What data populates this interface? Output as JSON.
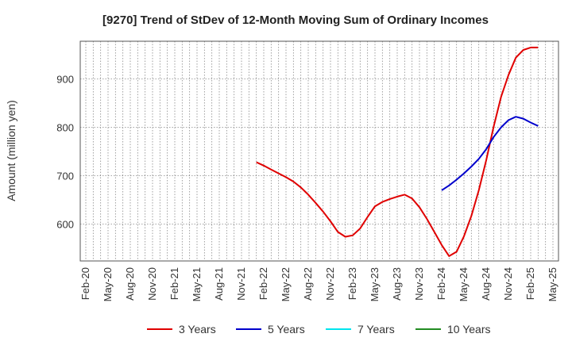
{
  "chart_data": {
    "type": "line",
    "title": "[9270]  Trend of StDev of 12-Month Moving Sum of Ordinary Incomes",
    "xlabel": "",
    "ylabel": "Amount (million yen)",
    "x_ticks": [
      "Feb-20",
      "May-20",
      "Aug-20",
      "Nov-20",
      "Feb-21",
      "May-21",
      "Aug-21",
      "Nov-21",
      "Feb-22",
      "May-22",
      "Aug-22",
      "Nov-22",
      "Feb-23",
      "May-23",
      "Aug-23",
      "Nov-23",
      "Feb-24",
      "May-24",
      "Aug-24",
      "Nov-24",
      "Feb-25",
      "May-25"
    ],
    "y_ticks": [
      600,
      700,
      800,
      900
    ],
    "ylim": [
      524,
      978
    ],
    "grid": true,
    "legend_position": "bottom",
    "series": [
      {
        "name": "3 Years",
        "color": "#e00000",
        "points": [
          [
            "Jan-22",
            728
          ],
          [
            "Feb-22",
            721
          ],
          [
            "Mar-22",
            713
          ],
          [
            "Apr-22",
            705
          ],
          [
            "May-22",
            697
          ],
          [
            "Jun-22",
            688
          ],
          [
            "Jul-22",
            676
          ],
          [
            "Aug-22",
            661
          ],
          [
            "Sep-22",
            644
          ],
          [
            "Oct-22",
            626
          ],
          [
            "Nov-22",
            606
          ],
          [
            "Dec-22",
            584
          ],
          [
            "Jan-23",
            574
          ],
          [
            "Feb-23",
            577
          ],
          [
            "Mar-23",
            591
          ],
          [
            "Apr-23",
            615
          ],
          [
            "May-23",
            637
          ],
          [
            "Jun-23",
            646
          ],
          [
            "Jul-23",
            652
          ],
          [
            "Aug-23",
            657
          ],
          [
            "Sep-23",
            661
          ],
          [
            "Oct-23",
            653
          ],
          [
            "Nov-23",
            635
          ],
          [
            "Dec-23",
            611
          ],
          [
            "Jan-24",
            584
          ],
          [
            "Feb-24",
            557
          ],
          [
            "Mar-24",
            534
          ],
          [
            "Apr-24",
            543
          ],
          [
            "May-24",
            575
          ],
          [
            "Jun-24",
            617
          ],
          [
            "Jul-24",
            670
          ],
          [
            "Aug-24",
            732
          ],
          [
            "Sep-24",
            801
          ],
          [
            "Oct-24",
            863
          ],
          [
            "Nov-24",
            908
          ],
          [
            "Dec-24",
            944
          ],
          [
            "Jan-25",
            960
          ],
          [
            "Feb-25",
            965
          ],
          [
            "Mar-25",
            965
          ]
        ]
      },
      {
        "name": "5 Years",
        "color": "#0000cc",
        "points": [
          [
            "Feb-24",
            670
          ],
          [
            "Mar-24",
            680
          ],
          [
            "Apr-24",
            692
          ],
          [
            "May-24",
            705
          ],
          [
            "Jun-24",
            719
          ],
          [
            "Jul-24",
            735
          ],
          [
            "Aug-24",
            755
          ],
          [
            "Sep-24",
            780
          ],
          [
            "Oct-24",
            800
          ],
          [
            "Nov-24",
            815
          ],
          [
            "Dec-24",
            822
          ],
          [
            "Jan-25",
            818
          ],
          [
            "Feb-25",
            810
          ],
          [
            "Mar-25",
            803
          ]
        ]
      },
      {
        "name": "7 Years",
        "color": "#00e5ee",
        "points": []
      },
      {
        "name": "10 Years",
        "color": "#228b22",
        "points": []
      }
    ]
  }
}
